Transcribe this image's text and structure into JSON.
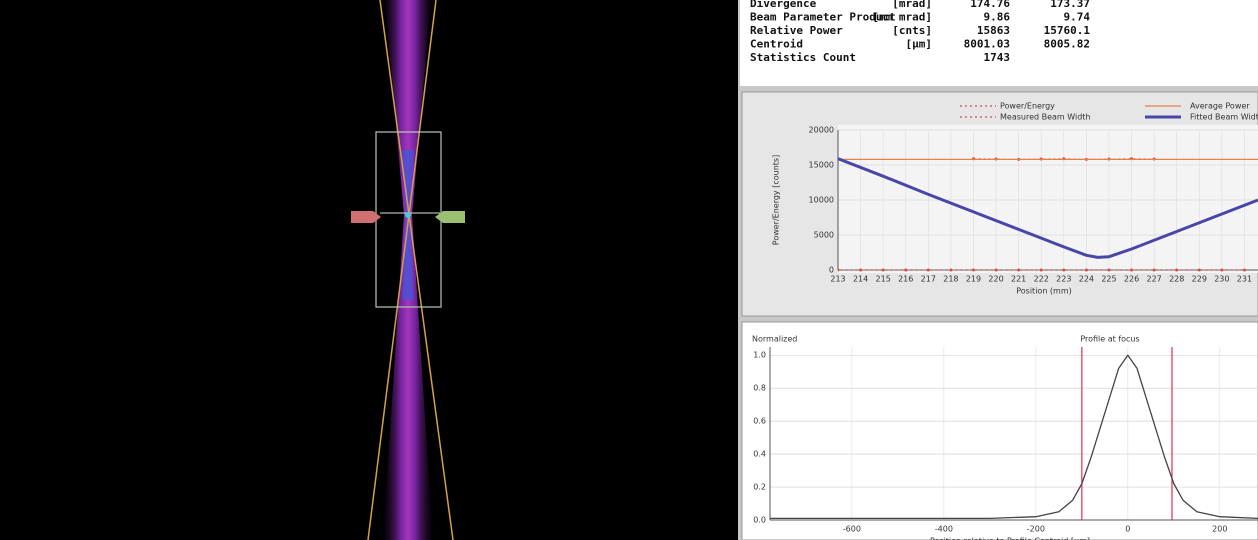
{
  "stats": {
    "rows": [
      {
        "label": "Divergence",
        "unit": "[mrad]",
        "values": [
          "174.76",
          "173.37"
        ]
      },
      {
        "label": "Beam Parameter Product",
        "unit": "[mm mrad]",
        "values": [
          "9.86",
          "9.74"
        ]
      },
      {
        "label": "Relative Power",
        "unit": "[cnts]",
        "values": [
          "15863",
          "15760.1"
        ]
      },
      {
        "label": "Centroid",
        "unit": "[µm]",
        "values": [
          "8001.03",
          "8005.82"
        ]
      },
      {
        "label": "Statistics Count",
        "values": [
          "1743"
        ]
      }
    ]
  },
  "caustic": {
    "type": "line",
    "x_label": "Position (mm)",
    "y_label": "Power/Energy [counts]",
    "xlim": [
      213,
      231.6
    ],
    "ylim": [
      0,
      20000
    ],
    "xticks": [
      213,
      214,
      215,
      216,
      217,
      218,
      219,
      220,
      221,
      222,
      223,
      224,
      225,
      226,
      227,
      228,
      229,
      230,
      231
    ],
    "yticks": [
      0,
      5000,
      10000,
      15000,
      20000
    ],
    "series": [
      {
        "name": "Power/Energy",
        "color": "#d84a4a",
        "style": "dots",
        "x": [
          219,
          220,
          221,
          222,
          223,
          224,
          225,
          226,
          227
        ],
        "values": [
          15900,
          15850,
          15800,
          15850,
          15900,
          15800,
          15850,
          15900,
          15850
        ]
      },
      {
        "name": "Average Power",
        "color": "#e8804a",
        "style": "line",
        "x": [
          213,
          231.6
        ],
        "values": [
          15800,
          15800
        ]
      },
      {
        "name": "Measured Beam Width",
        "color": "#d84a4a",
        "style": "dots",
        "x": [
          213,
          214,
          215,
          216,
          217,
          218,
          219,
          220,
          221,
          222,
          223,
          224,
          225,
          226,
          227,
          228,
          229,
          230,
          231
        ],
        "values": [
          0,
          0,
          0,
          0,
          0,
          0,
          0,
          0,
          0,
          0,
          0,
          0,
          0,
          0,
          0,
          0,
          0,
          0,
          0
        ]
      },
      {
        "name": "Fitted Beam Width",
        "color": "#4a46a8",
        "style": "thick",
        "x": [
          213,
          215,
          217,
          219,
          221,
          223,
          224,
          224.5,
          225,
          226,
          228,
          230,
          231.6
        ],
        "values": [
          15900,
          13400,
          10800,
          8300,
          5800,
          3300,
          2100,
          1800,
          1900,
          3000,
          5500,
          8000,
          10000
        ]
      }
    ]
  },
  "profile": {
    "type": "line",
    "title": "Profile at focus",
    "y_label": "Normalized",
    "x_label": "Position relative to Profile Centroid [µm]",
    "xlim": [
      -778,
      283
    ],
    "ylim": [
      0,
      1.05
    ],
    "xticks": [
      -600,
      -400,
      -200,
      0,
      200
    ],
    "yticks": [
      {
        "value": 0,
        "label": "0.0"
      },
      0.2,
      0.4,
      0.6,
      0.8,
      {
        "value": 1,
        "label": "1.0"
      }
    ],
    "markers": [
      -100,
      96
    ],
    "series": [
      {
        "color": "#444",
        "x": [
          -778,
          -700,
          -300,
          -200,
          -150,
          -120,
          -100,
          -80,
          -50,
          -20,
          0,
          20,
          50,
          80,
          100,
          120,
          150,
          200,
          283
        ],
        "values": [
          0.01,
          0.01,
          0.01,
          0.02,
          0.05,
          0.12,
          0.22,
          0.38,
          0.65,
          0.92,
          1.0,
          0.92,
          0.65,
          0.38,
          0.22,
          0.12,
          0.05,
          0.02,
          0.01
        ]
      }
    ]
  }
}
